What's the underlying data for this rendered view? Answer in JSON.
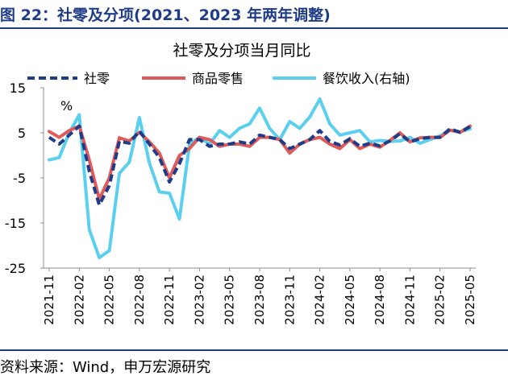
{
  "figure_title": "图 22：社零及分项(2021、2023 年两年调整)",
  "source_note": "资料来源：Wind，申万宏源研究",
  "chart_data": {
    "type": "line",
    "title": "社零及分项当月同比",
    "unit_label": "%",
    "ylabel": "",
    "xlabel": "",
    "ylim": [
      -25,
      15
    ],
    "yticks": [
      15,
      5,
      -5,
      -15,
      -25
    ],
    "grid": false,
    "legend_position": "top",
    "x": [
      "2021-11",
      "2021-12",
      "2022-01",
      "2022-02",
      "2022-03",
      "2022-04",
      "2022-05",
      "2022-06",
      "2022-07",
      "2022-08",
      "2022-09",
      "2022-10",
      "2022-11",
      "2022-12",
      "2023-01",
      "2023-02",
      "2023-03",
      "2023-04",
      "2023-05",
      "2023-06",
      "2023-07",
      "2023-08",
      "2023-09",
      "2023-10",
      "2023-11",
      "2023-12",
      "2024-01",
      "2024-02",
      "2024-03",
      "2024-04",
      "2024-05",
      "2024-06",
      "2024-07",
      "2024-08",
      "2024-09",
      "2024-10",
      "2024-11",
      "2024-12",
      "2025-01",
      "2025-02",
      "2025-03",
      "2025-04",
      "2025-05"
    ],
    "xtick_labels": [
      "2021-11",
      "2022-02",
      "2022-05",
      "2022-08",
      "2022-11",
      "2023-02",
      "2023-05",
      "2023-08",
      "2023-11",
      "2024-02",
      "2024-05",
      "2024-08",
      "2024-11",
      "2025-02",
      "2025-05"
    ],
    "series": [
      {
        "name": "社零",
        "color": "#1f3c88",
        "style": "dashed",
        "values": [
          4.0,
          2.5,
          4.5,
          6.5,
          -3.5,
          -11.0,
          -6.7,
          3.1,
          2.7,
          5.4,
          2.5,
          -0.5,
          -5.9,
          -1.8,
          3.5,
          3.5,
          2.0,
          2.5,
          2.5,
          3.0,
          2.5,
          4.5,
          4.0,
          3.5,
          1.5,
          2.5,
          3.5,
          5.5,
          3.1,
          2.3,
          3.7,
          2.0,
          2.7,
          2.1,
          3.2,
          4.8,
          3.0,
          3.7,
          4.0,
          4.0,
          5.9,
          5.1,
          6.4
        ]
      },
      {
        "name": "商品零售",
        "color": "#e05a5a",
        "style": "solid",
        "values": [
          5.3,
          4.0,
          5.5,
          6.5,
          -1.0,
          -9.7,
          -5.0,
          3.9,
          3.2,
          5.1,
          3.0,
          0.5,
          -5.0,
          0.0,
          1.5,
          4.0,
          3.5,
          2.0,
          2.5,
          2.5,
          2.0,
          4.0,
          4.0,
          3.5,
          0.5,
          2.5,
          3.5,
          4.0,
          2.5,
          1.5,
          3.5,
          1.5,
          2.5,
          1.8,
          3.3,
          5.0,
          3.0,
          3.9,
          4.0,
          4.0,
          5.6,
          5.1,
          6.5
        ]
      },
      {
        "name": "餐饮收入(右轴)",
        "color": "#5bcfee",
        "style": "solid",
        "values": [
          -1.0,
          -0.5,
          5.0,
          9.0,
          -16.4,
          -22.7,
          -21.1,
          -4.0,
          -1.5,
          8.4,
          -1.7,
          -8.1,
          -8.4,
          -14.1,
          2.5,
          4.0,
          2.5,
          5.5,
          4.0,
          6.0,
          7.0,
          10.5,
          6.0,
          3.5,
          7.5,
          6.0,
          8.5,
          12.5,
          7.0,
          4.5,
          5.0,
          5.5,
          3.0,
          3.3,
          3.1,
          3.2,
          4.0,
          2.7,
          3.5,
          4.3,
          5.6,
          5.2,
          5.9
        ]
      }
    ]
  }
}
